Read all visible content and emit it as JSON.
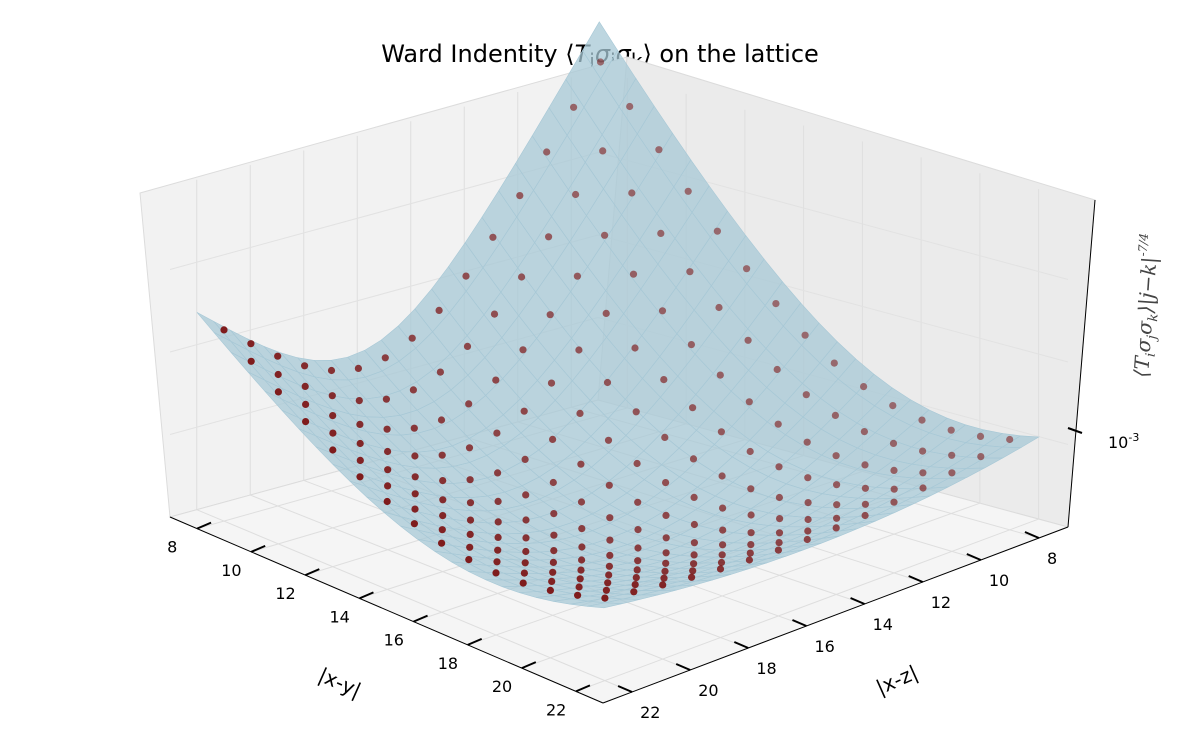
{
  "chart_data": {
    "type": "surface3d",
    "title": "Ward Indentity ⟨T_i σ_j σ_k⟩ on the lattice",
    "xlabel": "|x-y|",
    "ylabel": "|x-z|",
    "zlabel": "⟨T_i σ_j σ_k⟩ |j−k|^(-7/4)",
    "z_scale": "log",
    "x_range": [
      7,
      23
    ],
    "y_range": [
      7,
      23
    ],
    "x_ticks": [
      "8",
      "10",
      "12",
      "14",
      "16",
      "18",
      "20",
      "22"
    ],
    "y_ticks": [
      "8",
      "10",
      "12",
      "14",
      "16",
      "18",
      "20",
      "22"
    ],
    "z_ticks": [
      "10^-3"
    ],
    "grid": true,
    "series": [
      {
        "kind": "surface",
        "color": "#a7c8d6"
      },
      {
        "kind": "scatter",
        "color": "#7a0c0c"
      }
    ],
    "corner_values_approx": {
      "x8_y8": 0.0035,
      "x22_y8": 0.0016,
      "x8_y22": 0.0016,
      "x22_y22": 0.0006,
      "x15_y15": 0.0005
    }
  }
}
